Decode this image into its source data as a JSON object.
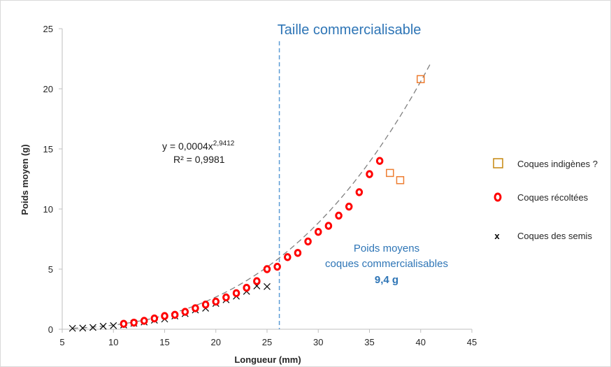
{
  "chart_data": {
    "type": "scatter",
    "xlabel": "Longueur (mm)",
    "ylabel": "Poids moyen (g)",
    "xlim": [
      5,
      45
    ],
    "ylim": [
      0,
      25
    ],
    "xticks": [
      5,
      10,
      15,
      20,
      25,
      30,
      35,
      40,
      45
    ],
    "yticks": [
      0,
      5,
      10,
      15,
      20,
      25
    ],
    "grid": false,
    "legend_position": "right",
    "series": [
      {
        "name": "Coques indigènes ?",
        "marker": "square",
        "color": "#ed7d31",
        "points": [
          [
            37,
            13.0
          ],
          [
            38,
            12.4
          ],
          [
            40,
            20.8
          ]
        ]
      },
      {
        "name": "Coques récoltées",
        "marker": "ring",
        "color": "#ff0000",
        "points": [
          [
            11,
            0.45
          ],
          [
            12,
            0.55
          ],
          [
            13,
            0.7
          ],
          [
            14,
            0.9
          ],
          [
            15,
            1.1
          ],
          [
            16,
            1.2
          ],
          [
            17,
            1.45
          ],
          [
            18,
            1.75
          ],
          [
            19,
            2.05
          ],
          [
            20,
            2.3
          ],
          [
            21,
            2.65
          ],
          [
            22,
            3.0
          ],
          [
            23,
            3.45
          ],
          [
            24,
            4.0
          ],
          [
            25,
            5.0
          ],
          [
            26,
            5.2
          ],
          [
            27,
            6.0
          ],
          [
            28,
            6.35
          ],
          [
            29,
            7.3
          ],
          [
            30,
            8.1
          ],
          [
            31,
            8.6
          ],
          [
            32,
            9.45
          ],
          [
            33,
            10.2
          ],
          [
            34,
            11.4
          ],
          [
            35,
            12.9
          ],
          [
            36,
            14.0
          ]
        ]
      },
      {
        "name": "Coques des semis",
        "marker": "x",
        "color": "#000000",
        "points": [
          [
            6,
            0.08
          ],
          [
            7,
            0.1
          ],
          [
            8,
            0.15
          ],
          [
            9,
            0.25
          ],
          [
            10,
            0.3
          ],
          [
            11,
            0.35
          ],
          [
            12,
            0.5
          ],
          [
            13,
            0.6
          ],
          [
            14,
            0.75
          ],
          [
            15,
            0.85
          ],
          [
            16,
            1.1
          ],
          [
            17,
            1.3
          ],
          [
            18,
            1.6
          ],
          [
            19,
            1.75
          ],
          [
            20,
            2.15
          ],
          [
            21,
            2.45
          ],
          [
            22,
            2.75
          ],
          [
            23,
            3.15
          ],
          [
            24,
            3.6
          ],
          [
            25,
            3.55
          ]
        ]
      }
    ],
    "trendline": {
      "equation_label": "y = 0,0004x",
      "equation_exponent": "2,9412",
      "r2_label": "R² = 0,9981",
      "coefficient": 0.0004,
      "exponent": 2.9412,
      "x_range": [
        6,
        41
      ],
      "style": "dashed",
      "color": "#7f7f7f"
    },
    "reference_line": {
      "x": 26.2,
      "label": "Taille commercialisable",
      "color": "#5b9bd5",
      "style": "dashed"
    },
    "annotation": {
      "line1": "Poids moyens",
      "line2": "coques commercialisables",
      "value": "9,4 g"
    }
  }
}
